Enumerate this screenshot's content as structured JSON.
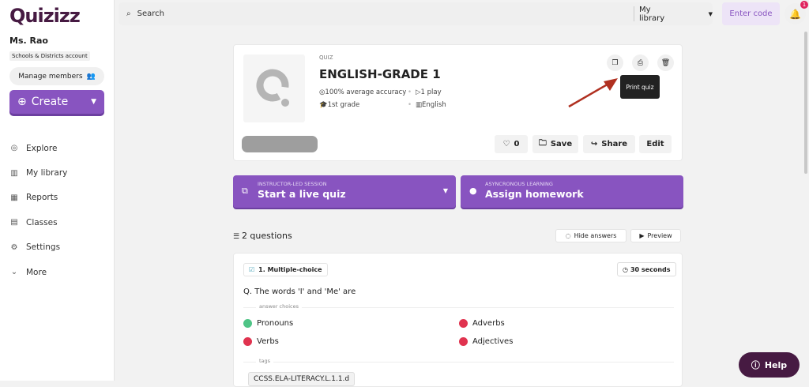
{
  "brand": {
    "logo": "Quizizz",
    "color": "#461a42",
    "accent": "#8854c0"
  },
  "sidebar": {
    "user": "Ms. Rao",
    "account": "Schools & Districts account",
    "manage": "Manage members",
    "create": "Create",
    "items": [
      {
        "label": "Explore",
        "icon": "compass-icon"
      },
      {
        "label": "My library",
        "icon": "library-icon"
      },
      {
        "label": "Reports",
        "icon": "chart-icon"
      },
      {
        "label": "Classes",
        "icon": "classes-icon"
      },
      {
        "label": "Settings",
        "icon": "gear-icon"
      },
      {
        "label": "More",
        "icon": "chevron-down-icon"
      }
    ]
  },
  "topbar": {
    "search_placeholder": "Search",
    "scope": "My library",
    "enter_code": "Enter code",
    "notifications": "1"
  },
  "quiz": {
    "type": "QUIZ",
    "title": "ENGLISH-GRADE 1",
    "accuracy": "100% average accuracy",
    "plays": "1 play",
    "grade": "1st grade",
    "subject": "English",
    "tooltip": "Print quiz",
    "likes": "0",
    "save": "Save",
    "share": "Share",
    "edit": "Edit"
  },
  "actions": {
    "live_small": "INSTRUCTOR-LED SESSION",
    "live": "Start a live quiz",
    "hw_small": "ASYNCRONOUS LEARNING",
    "hw": "Assign homework"
  },
  "questions": {
    "count": "2 questions",
    "hide": "Hide answers",
    "preview": "Preview"
  },
  "question1": {
    "type": "1. Multiple-choice",
    "time": "30 seconds",
    "text": "Q. The words 'I' and 'Me' are",
    "choices_label": "answer choices",
    "choices": [
      {
        "text": "Pronouns",
        "correct": true
      },
      {
        "text": "Adverbs",
        "correct": false
      },
      {
        "text": "Verbs",
        "correct": false
      },
      {
        "text": "Adjectives",
        "correct": false
      }
    ],
    "tags_label": "tags",
    "tag": "CCSS.ELA-LITERACY.L.1.1.d"
  },
  "colors": {
    "correct": "#4fc486",
    "incorrect": "#e0334f"
  },
  "help": "Help"
}
